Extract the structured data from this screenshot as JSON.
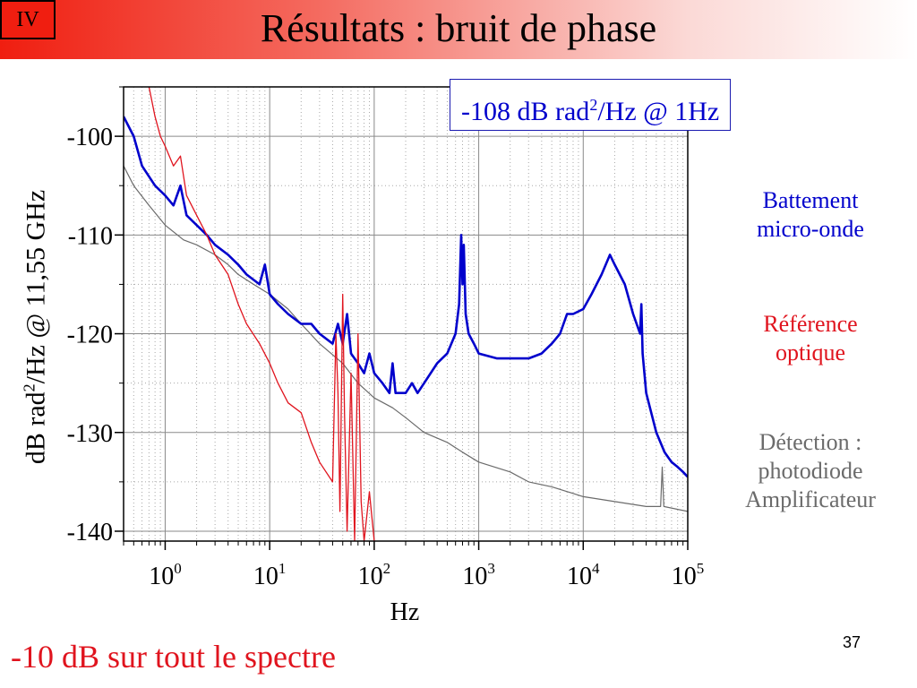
{
  "slide": {
    "section": "IV",
    "title": "Résultats : bruit de phase",
    "footer": "-10 dB sur tout le spectre",
    "page_number": "37"
  },
  "annotation": {
    "text_pre": "-108 dB rad",
    "sup": "2",
    "text_post": "/Hz @ 1Hz"
  },
  "legend": [
    {
      "lines": [
        "Battement",
        "micro-onde"
      ],
      "color": "#0000cc"
    },
    {
      "lines": [
        "Référence",
        "optique"
      ],
      "color": "#e0141e"
    },
    {
      "lines": [
        "Détection :",
        "photodiode",
        "Amplificateur"
      ],
      "color": "#6b6b6b"
    }
  ],
  "chart_data": {
    "type": "line",
    "x_scale": "log",
    "xlabel": "Hz",
    "ylabel_pre": "dB rad",
    "ylabel_sup": "2",
    "ylabel_post": "/Hz @ 11,55 GHz",
    "xlim": [
      0.4,
      100000
    ],
    "ylim": [
      -141,
      -95
    ],
    "x_ticks": [
      {
        "value": 1,
        "base": "10",
        "exp": "0"
      },
      {
        "value": 10,
        "base": "10",
        "exp": "1"
      },
      {
        "value": 100,
        "base": "10",
        "exp": "2"
      },
      {
        "value": 1000,
        "base": "10",
        "exp": "3"
      },
      {
        "value": 10000,
        "base": "10",
        "exp": "4"
      },
      {
        "value": 100000,
        "base": "10",
        "exp": "5"
      }
    ],
    "y_ticks": [
      -100,
      -110,
      -120,
      -130,
      -140
    ],
    "grid": true,
    "series": [
      {
        "color": "#6b6b6b",
        "width": 1.2,
        "points": [
          [
            0.4,
            -103
          ],
          [
            0.5,
            -105
          ],
          [
            0.7,
            -107
          ],
          [
            1,
            -109
          ],
          [
            1.5,
            -110.5
          ],
          [
            2,
            -111
          ],
          [
            3,
            -112
          ],
          [
            4,
            -113
          ],
          [
            5,
            -114
          ],
          [
            7,
            -115
          ],
          [
            10,
            -116
          ],
          [
            15,
            -117.5
          ],
          [
            20,
            -119
          ],
          [
            30,
            -121
          ],
          [
            50,
            -123
          ],
          [
            70,
            -125
          ],
          [
            100,
            -126.5
          ],
          [
            150,
            -127.5
          ],
          [
            200,
            -128.5
          ],
          [
            300,
            -130
          ],
          [
            500,
            -131
          ],
          [
            700,
            -132
          ],
          [
            1000,
            -133
          ],
          [
            2000,
            -134
          ],
          [
            3000,
            -135
          ],
          [
            5000,
            -135.5
          ],
          [
            10000,
            -136.5
          ],
          [
            20000,
            -137
          ],
          [
            40000,
            -137.5
          ],
          [
            55000,
            -137.5
          ],
          [
            57000,
            -133.5
          ],
          [
            59000,
            -137.5
          ],
          [
            100000,
            -138
          ]
        ]
      },
      {
        "color": "#0000cc",
        "width": 2.6,
        "points": [
          [
            0.4,
            -98
          ],
          [
            0.5,
            -100
          ],
          [
            0.6,
            -103
          ],
          [
            0.8,
            -105
          ],
          [
            1,
            -106
          ],
          [
            1.2,
            -107
          ],
          [
            1.4,
            -105
          ],
          [
            1.6,
            -108
          ],
          [
            2,
            -109
          ],
          [
            2.5,
            -110
          ],
          [
            3,
            -111
          ],
          [
            4,
            -112
          ],
          [
            5,
            -113
          ],
          [
            6,
            -114
          ],
          [
            8,
            -115
          ],
          [
            9,
            -113
          ],
          [
            10,
            -116
          ],
          [
            12,
            -117
          ],
          [
            15,
            -118
          ],
          [
            20,
            -119
          ],
          [
            25,
            -119
          ],
          [
            30,
            -120
          ],
          [
            40,
            -121
          ],
          [
            45,
            -119
          ],
          [
            50,
            -121
          ],
          [
            55,
            -118
          ],
          [
            60,
            -122
          ],
          [
            70,
            -123
          ],
          [
            80,
            -124
          ],
          [
            90,
            -122
          ],
          [
            100,
            -124
          ],
          [
            120,
            -125
          ],
          [
            140,
            -126
          ],
          [
            150,
            -123
          ],
          [
            160,
            -126
          ],
          [
            200,
            -126
          ],
          [
            230,
            -125
          ],
          [
            260,
            -126
          ],
          [
            300,
            -125
          ],
          [
            400,
            -123
          ],
          [
            500,
            -122
          ],
          [
            600,
            -120
          ],
          [
            650,
            -117
          ],
          [
            680,
            -110
          ],
          [
            700,
            -115
          ],
          [
            720,
            -111
          ],
          [
            750,
            -118
          ],
          [
            800,
            -120
          ],
          [
            900,
            -121
          ],
          [
            1000,
            -122
          ],
          [
            1500,
            -122.5
          ],
          [
            2000,
            -122.5
          ],
          [
            3000,
            -122.5
          ],
          [
            4000,
            -122
          ],
          [
            5000,
            -121
          ],
          [
            6000,
            -120
          ],
          [
            7000,
            -118
          ],
          [
            8000,
            -118
          ],
          [
            10000,
            -117.5
          ],
          [
            12000,
            -116
          ],
          [
            15000,
            -114
          ],
          [
            18000,
            -112
          ],
          [
            20000,
            -113
          ],
          [
            25000,
            -115
          ],
          [
            30000,
            -118
          ],
          [
            35000,
            -120
          ],
          [
            36000,
            -117
          ],
          [
            37000,
            -122
          ],
          [
            40000,
            -126
          ],
          [
            50000,
            -130
          ],
          [
            60000,
            -132
          ],
          [
            70000,
            -133
          ],
          [
            80000,
            -133.5
          ],
          [
            90000,
            -134
          ],
          [
            100000,
            -134.5
          ]
        ]
      },
      {
        "color": "#e0141e",
        "width": 1.3,
        "points": [
          [
            0.7,
            -95
          ],
          [
            0.8,
            -98
          ],
          [
            0.9,
            -100
          ],
          [
            1,
            -101
          ],
          [
            1.2,
            -103
          ],
          [
            1.4,
            -102
          ],
          [
            1.6,
            -106
          ],
          [
            2,
            -108
          ],
          [
            2.5,
            -110
          ],
          [
            3,
            -112
          ],
          [
            4,
            -114
          ],
          [
            5,
            -117
          ],
          [
            6,
            -119
          ],
          [
            8,
            -121
          ],
          [
            10,
            -123
          ],
          [
            12,
            -125
          ],
          [
            15,
            -127
          ],
          [
            20,
            -128
          ],
          [
            25,
            -131
          ],
          [
            30,
            -133
          ],
          [
            40,
            -135
          ],
          [
            43,
            -120
          ],
          [
            45,
            -126
          ],
          [
            47,
            -138
          ],
          [
            50,
            -116
          ],
          [
            52,
            -128
          ],
          [
            55,
            -140
          ],
          [
            60,
            -124
          ],
          [
            65,
            -141
          ],
          [
            70,
            -120
          ],
          [
            75,
            -137
          ],
          [
            80,
            -141
          ],
          [
            90,
            -136
          ],
          [
            100,
            -141
          ]
        ]
      }
    ]
  }
}
